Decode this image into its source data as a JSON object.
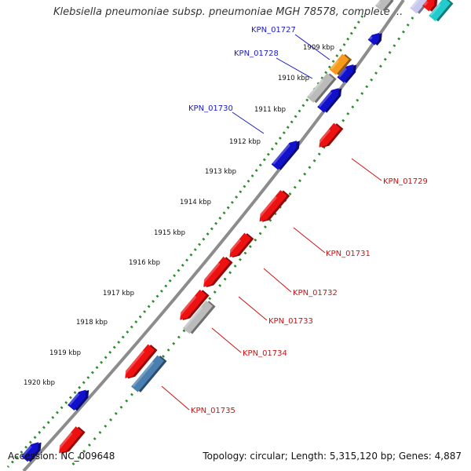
{
  "title": "Klebsiella pneumoniae subsp. pneumoniae MGH 78578, complete ...",
  "accession": "Accession: NC_009648",
  "summary": "Topology: circular; Length: 5,315,120 bp; Genes: 4,887",
  "colors": {
    "backbone": "#8c8c8c",
    "tick_dots": "#2e8b2e",
    "label_blue": "#1a1acc",
    "label_red": "#cc1111",
    "blue": "#1111cc",
    "red": "#ee1111",
    "gray": "#bbbbbb",
    "orange": "#f59a1a",
    "steel": "#4a7fb0",
    "cyan": "#22cccc",
    "lightblue": "#c8c8ee"
  },
  "ticks": [
    {
      "label": "1909 kbp"
    },
    {
      "label": "1910 kbp"
    },
    {
      "label": "1911 kbp"
    },
    {
      "label": "1912 kbp"
    },
    {
      "label": "1913 kbp"
    },
    {
      "label": "1914 kbp"
    },
    {
      "label": "1915 kbp"
    },
    {
      "label": "1916 kbp"
    },
    {
      "label": "1917 kbp"
    },
    {
      "label": "1918 kbp"
    },
    {
      "label": "1919 kbp"
    },
    {
      "label": "1920 kbp"
    }
  ],
  "gene_labels": [
    {
      "text": "KPN_01727",
      "color": "blue"
    },
    {
      "text": "KPN_01728",
      "color": "blue"
    },
    {
      "text": "KPN_01730",
      "color": "blue"
    },
    {
      "text": "KPN_01729",
      "color": "red"
    },
    {
      "text": "KPN_01731",
      "color": "red"
    },
    {
      "text": "KPN_01732",
      "color": "red"
    },
    {
      "text": "KPN_01733",
      "color": "red"
    },
    {
      "text": "KPN_01734",
      "color": "red"
    },
    {
      "text": "KPN_01735",
      "color": "red"
    }
  ]
}
